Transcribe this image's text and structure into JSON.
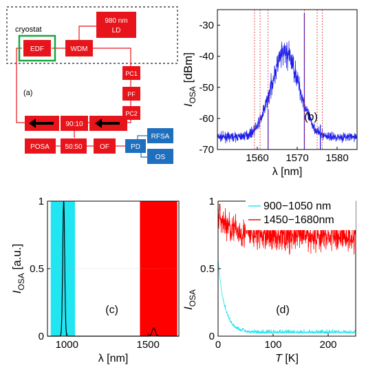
{
  "diagram": {
    "cryostat_label": "cryostat",
    "panel_label": "(a)",
    "boxes": {
      "edf": "EDF",
      "wdm": "WDM",
      "ld_line1": "980 nm",
      "ld_line2": "LD",
      "pc1": "PC1",
      "pf": "PF",
      "pc2": "PC2",
      "coupler": "90:10",
      "splitter": "50:50",
      "posa": "POSA",
      "of": "OF",
      "pd": "PD",
      "rfsa": "RFSA",
      "os": "OS"
    },
    "colors": {
      "component": "#e8141b",
      "detector": "#1f6fbf",
      "cryostat_frame": "#14a83b",
      "dashed": "#444444"
    }
  },
  "chart_data": [
    {
      "id": "b",
      "type": "line",
      "annotation": "(b)",
      "xlabel": "λ [nm]",
      "ylabel_main": "I",
      "ylabel_sub": "OSA",
      "ylabel_unit": " [dBm]",
      "xlim": [
        1550,
        1585
      ],
      "ylim": [
        -70,
        -25
      ],
      "xticks": [
        1560,
        1570,
        1580
      ],
      "yticks": [
        -30,
        -40,
        -50,
        -60,
        -70
      ],
      "series": [
        {
          "color": "#1f1fe8",
          "noise_floor": -66,
          "hump_center": 1567,
          "hump_peak": -39,
          "hump_width": 3.5,
          "spikes": [
            {
              "x": 1571.8,
              "y": -26
            },
            {
              "x": 1562.7,
              "y": -57
            },
            {
              "x": 1575.8,
              "y": -62
            }
          ]
        }
      ],
      "markers": {
        "color": "#e02020",
        "x": [
          1559.3,
          1560.7,
          1562.7,
          1571.8,
          1575.0,
          1576.3
        ]
      }
    },
    {
      "id": "c",
      "type": "line",
      "annotation": "(c)",
      "xlabel": "λ [nm]",
      "ylabel_main": "I",
      "ylabel_sub": "OSA",
      "ylabel_unit": " [a.u.]",
      "xlim": [
        880,
        1690
      ],
      "ylim": [
        0,
        1
      ],
      "xticks": [
        1000,
        1500
      ],
      "yticks": [
        0,
        0.5,
        1
      ],
      "ytick_labels": [
        "0",
        "0.5",
        "1"
      ],
      "bands": [
        {
          "range": [
            900,
            1050
          ],
          "color": "#22e5f2"
        },
        {
          "range": [
            1450,
            1680
          ],
          "color": "#ff0000"
        }
      ],
      "series": [
        {
          "color": "#000000",
          "peaks": [
            {
              "x": 980,
              "y": 1.0,
              "width": 6
            },
            {
              "x": 1535,
              "y": 0.06,
              "width": 10
            }
          ]
        }
      ]
    },
    {
      "id": "d",
      "type": "line",
      "annotation": "(d)",
      "xlabel_main": "T",
      "xlabel_unit": " [K]",
      "ylabel_main": "I",
      "ylabel_sub": "OSA",
      "xlim": [
        0,
        250
      ],
      "ylim": [
        0,
        1
      ],
      "xticks": [
        0,
        100,
        200
      ],
      "yticks": [
        0,
        0.5,
        1
      ],
      "ytick_labels": [
        "0",
        "0.5",
        "1"
      ],
      "series": [
        {
          "name": "900−1050 nm",
          "color": "#22e5f2",
          "start": 0.55,
          "tau": 12,
          "floor": 0.02,
          "noise": 0.03
        },
        {
          "name": "1450−1680nm",
          "color": "#ff0000",
          "start": 0.9,
          "mean": 0.74,
          "noise": 0.12
        }
      ]
    }
  ]
}
